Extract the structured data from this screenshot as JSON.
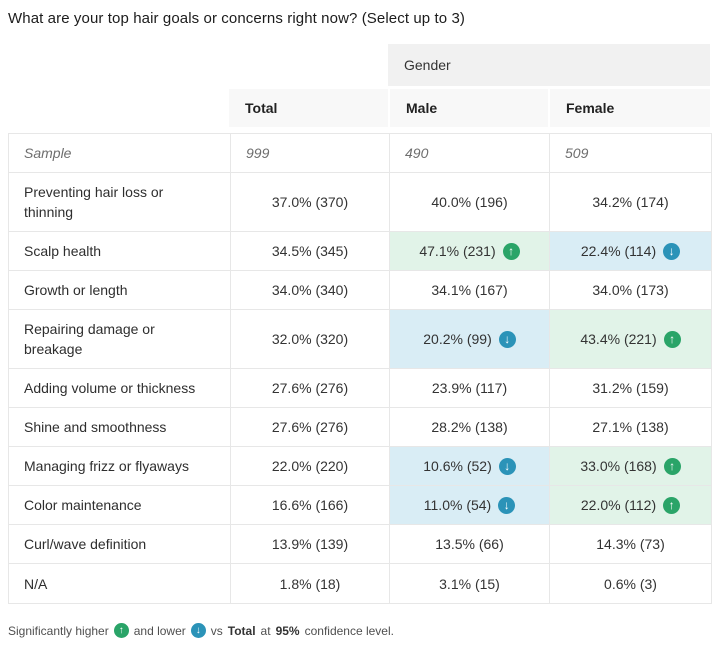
{
  "chart_data": {
    "type": "table",
    "title": "What are your top hair goals or concerns right now? (Select up to 3)",
    "group_header": "Gender",
    "columns": [
      "Total",
      "Male",
      "Female"
    ],
    "sample_row": {
      "label": "Sample",
      "values": [
        "999",
        "490",
        "509"
      ]
    },
    "rows": [
      {
        "label": "Preventing hair loss or thinning",
        "cells": [
          {
            "text": "37.0% (370)",
            "sig": null
          },
          {
            "text": "40.0% (196)",
            "sig": null
          },
          {
            "text": "34.2% (174)",
            "sig": null
          }
        ]
      },
      {
        "label": "Scalp health",
        "cells": [
          {
            "text": "34.5% (345)",
            "sig": null
          },
          {
            "text": "47.1% (231)",
            "sig": "higher"
          },
          {
            "text": "22.4% (114)",
            "sig": "lower"
          }
        ]
      },
      {
        "label": "Growth or length",
        "cells": [
          {
            "text": "34.0% (340)",
            "sig": null
          },
          {
            "text": "34.1% (167)",
            "sig": null
          },
          {
            "text": "34.0% (173)",
            "sig": null
          }
        ]
      },
      {
        "label": "Repairing damage or breakage",
        "cells": [
          {
            "text": "32.0% (320)",
            "sig": null
          },
          {
            "text": "20.2% (99)",
            "sig": "lower"
          },
          {
            "text": "43.4% (221)",
            "sig": "higher"
          }
        ]
      },
      {
        "label": "Adding volume or thickness",
        "cells": [
          {
            "text": "27.6% (276)",
            "sig": null
          },
          {
            "text": "23.9% (117)",
            "sig": null
          },
          {
            "text": "31.2% (159)",
            "sig": null
          }
        ]
      },
      {
        "label": "Shine and smoothness",
        "cells": [
          {
            "text": "27.6% (276)",
            "sig": null
          },
          {
            "text": "28.2% (138)",
            "sig": null
          },
          {
            "text": "27.1% (138)",
            "sig": null
          }
        ]
      },
      {
        "label": "Managing frizz or flyaways",
        "cells": [
          {
            "text": "22.0% (220)",
            "sig": null
          },
          {
            "text": "10.6% (52)",
            "sig": "lower"
          },
          {
            "text": "33.0% (168)",
            "sig": "higher"
          }
        ]
      },
      {
        "label": "Color maintenance",
        "cells": [
          {
            "text": "16.6% (166)",
            "sig": null
          },
          {
            "text": "11.0% (54)",
            "sig": "lower"
          },
          {
            "text": "22.0% (112)",
            "sig": "higher"
          }
        ]
      },
      {
        "label": "Curl/wave definition",
        "cells": [
          {
            "text": "13.9% (139)",
            "sig": null
          },
          {
            "text": "13.5% (66)",
            "sig": null
          },
          {
            "text": "14.3% (73)",
            "sig": null
          }
        ]
      },
      {
        "label": "N/A",
        "cells": [
          {
            "text": "1.8% (18)",
            "sig": null
          },
          {
            "text": "3.1% (15)",
            "sig": null
          },
          {
            "text": "0.6% (3)",
            "sig": null
          }
        ]
      }
    ],
    "footnote": {
      "prefix": "Significantly higher",
      "mid": "and lower",
      "vs": "vs",
      "vs_target": "Total",
      "at": "at",
      "confidence": "95%",
      "suffix": "confidence level."
    }
  },
  "icons": {
    "up_arrow": "↑",
    "down_arrow": "↓"
  },
  "colors": {
    "sig_higher_bg": "#e1f3e8",
    "sig_higher_badge": "#2aa468",
    "sig_lower_bg": "#d9edf5",
    "sig_lower_badge": "#2b93b8"
  }
}
